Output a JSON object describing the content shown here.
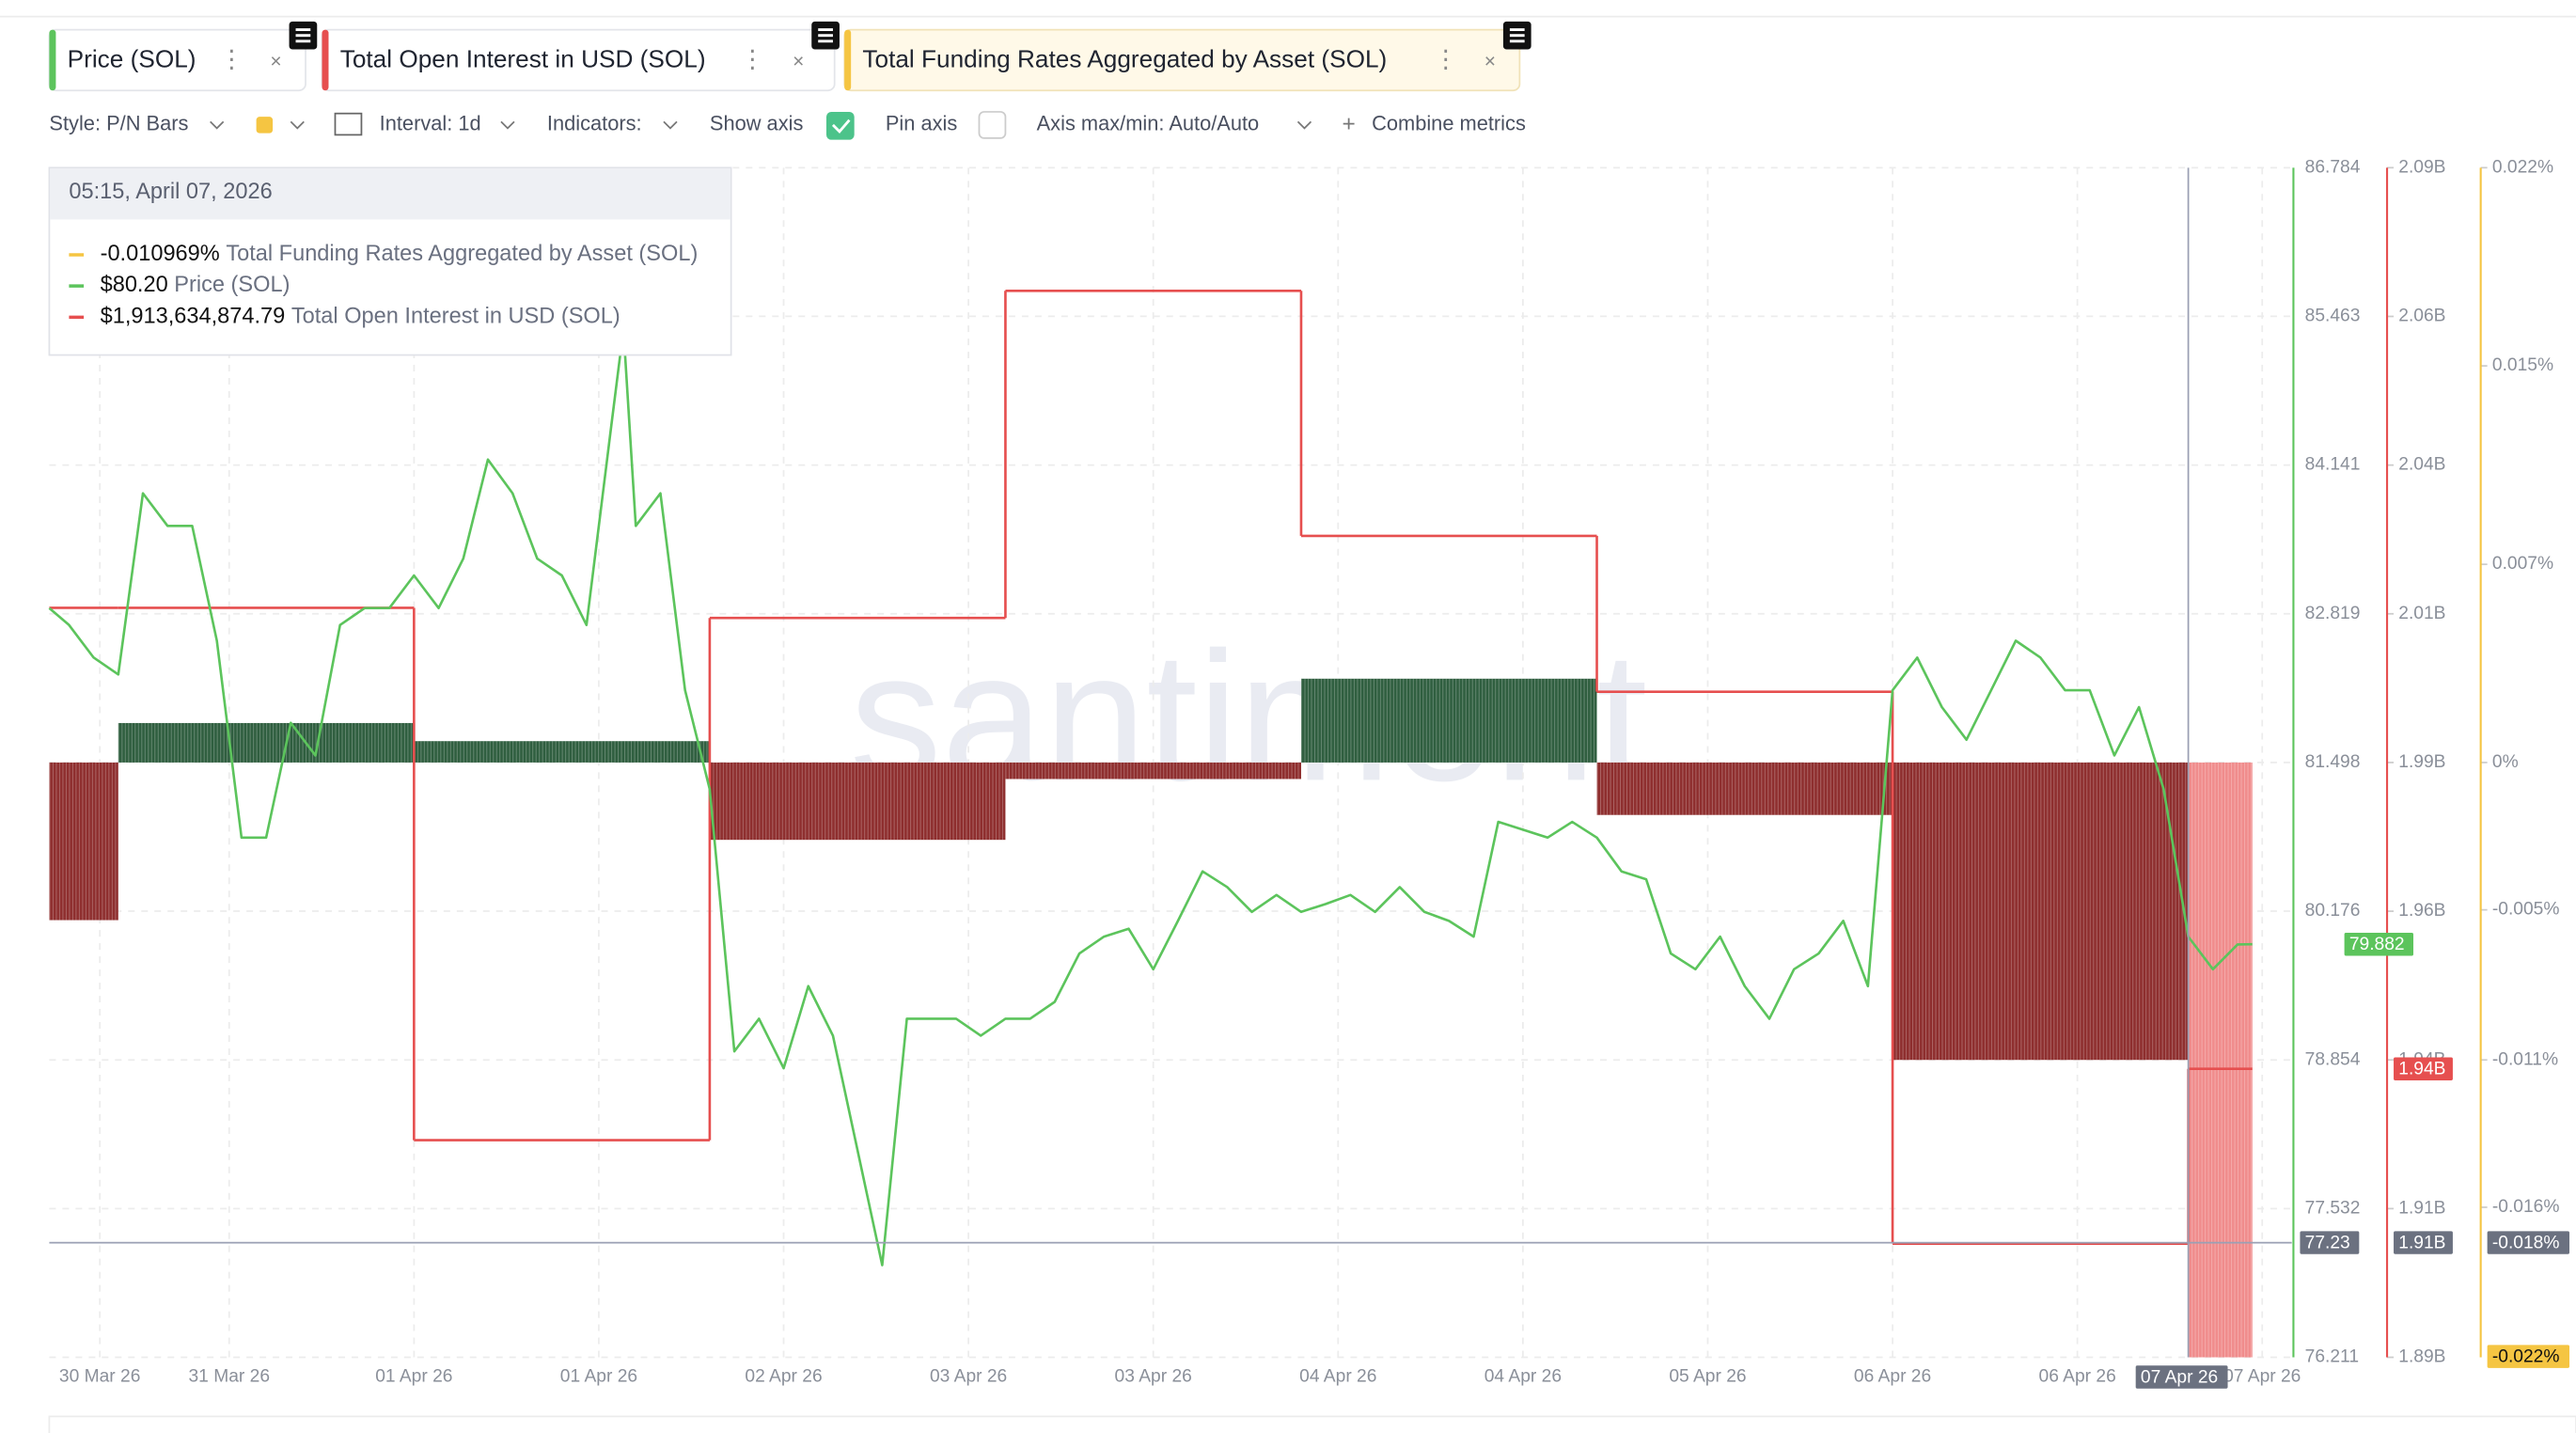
{
  "toolbar": {
    "style": "Style: P/N Bars",
    "interval": "Interval: 1d",
    "indicators": "Indicators:",
    "show_axis": "Show axis",
    "pin_axis": "Pin axis",
    "axis_minmax": "Axis max/min: Auto/Auto",
    "combine": "Combine metrics"
  },
  "tooltip": {
    "title": "05:15, April 07, 2026",
    "rows": [
      {
        "value": "-0.010969%",
        "name": "Total Funding Rates Aggregated by Asset (SOL)"
      },
      {
        "value": "$80.20",
        "name": "Price (SOL)"
      },
      {
        "value": "$1,913,634,874.79",
        "name": "Total Open Interest in USD (SOL)"
      }
    ]
  },
  "watermark": "santiment",
  "chart_data": {
    "type": "line",
    "xlim": [
      -5.6,
      176.4
    ],
    "xticks": [
      {
        "value": -1.5,
        "label": "30 Mar 26"
      },
      {
        "value": 9,
        "label": "31 Mar 26"
      },
      {
        "value": 24,
        "label": "01 Apr 26"
      },
      {
        "value": 39,
        "label": "01 Apr 26"
      },
      {
        "value": 54,
        "label": "02 Apr 26"
      },
      {
        "value": 69,
        "label": "03 Apr 26"
      },
      {
        "value": 84,
        "label": "03 Apr 26"
      },
      {
        "value": 99,
        "label": "04 Apr 26"
      },
      {
        "value": 114,
        "label": "04 Apr 26"
      },
      {
        "value": 129,
        "label": "05 Apr 26"
      },
      {
        "value": 144,
        "label": "06 Apr 26"
      },
      {
        "value": 159,
        "label": "06 Apr 26"
      },
      {
        "value": 174,
        "label": "07 Apr 26"
      }
    ],
    "ylim": [
      76.211,
      86.784
    ],
    "yticks": [
      86.784,
      85.463,
      84.141,
      82.819,
      81.498,
      80.176,
      78.854,
      77.532,
      76.211
    ],
    "y2lim": [
      1887500000,
      2087500000
    ],
    "y2ticks": [
      {
        "value": 2087500000,
        "label": "2.09B"
      },
      {
        "value": 2062500000,
        "label": "2.06B"
      },
      {
        "value": 2037500000,
        "label": "2.04B"
      },
      {
        "value": 2012500000,
        "label": "2.01B"
      },
      {
        "value": 1987500000,
        "label": "1.99B"
      },
      {
        "value": 1962500000,
        "label": "1.96B"
      },
      {
        "value": 1937500000,
        "label": "1.94B"
      },
      {
        "value": 1912500000,
        "label": "1.91B"
      },
      {
        "value": 1887500000,
        "label": "1.89B"
      }
    ],
    "y3lim": [
      -0.022,
      0.022
    ],
    "y3ticks": [
      {
        "value": 0.022,
        "label": "0.022%"
      },
      {
        "value": 0.01467,
        "label": "0.015%"
      },
      {
        "value": 0.00733,
        "label": "0.007%"
      },
      {
        "value": 0,
        "label": "0%"
      },
      {
        "value": -0.00545,
        "label": "-0.005%"
      },
      {
        "value": -0.011,
        "label": "-0.011%"
      },
      {
        "value": -0.01645,
        "label": "-0.016%"
      }
    ],
    "grid": true,
    "series": [
      {
        "name": "Price (SOL)",
        "type": "line",
        "color": "#5cc45c",
        "axis": "y",
        "x": [
          -5.6,
          -4,
          -2,
          0,
          2,
          4,
          6,
          8,
          10,
          12,
          14,
          16,
          18,
          20,
          22,
          24,
          26,
          28,
          30,
          32,
          34,
          36,
          38,
          40,
          41,
          42,
          44,
          46,
          48,
          50,
          52,
          54,
          56,
          58,
          60,
          62,
          64,
          66,
          68,
          70,
          72,
          74,
          76,
          78,
          80,
          82,
          84,
          86,
          88,
          90,
          92,
          94,
          96,
          98,
          100,
          102,
          104,
          106,
          108,
          110,
          112,
          114,
          116,
          118,
          120,
          122,
          124,
          126,
          128,
          130,
          132,
          134,
          136,
          138,
          140,
          142,
          144,
          146,
          148,
          150,
          152,
          154,
          156,
          158,
          160,
          162,
          164,
          166,
          168,
          170,
          172,
          173.2
        ],
        "values": [
          82.87,
          82.72,
          82.43,
          82.28,
          83.89,
          83.6,
          83.6,
          82.58,
          80.83,
          80.83,
          81.85,
          81.56,
          82.72,
          82.87,
          82.87,
          83.16,
          82.87,
          83.31,
          84.19,
          83.89,
          83.31,
          83.16,
          82.72,
          84.48,
          85.35,
          83.6,
          83.89,
          82.14,
          81.26,
          78.93,
          79.22,
          78.78,
          79.51,
          79.07,
          78.05,
          77.03,
          79.22,
          79.22,
          79.22,
          79.07,
          79.22,
          79.22,
          79.37,
          79.8,
          79.95,
          80.02,
          79.66,
          80.09,
          80.53,
          80.39,
          80.17,
          80.32,
          80.17,
          80.24,
          80.32,
          80.17,
          80.39,
          80.17,
          80.09,
          79.95,
          80.97,
          80.9,
          80.83,
          80.97,
          80.83,
          80.53,
          80.46,
          79.8,
          79.66,
          79.95,
          79.51,
          79.22,
          79.66,
          79.8,
          80.09,
          79.51,
          82.14,
          82.43,
          81.99,
          81.7,
          82.14,
          82.58,
          82.43,
          82.14,
          82.14,
          81.56,
          81.99,
          81.26,
          79.95,
          79.66,
          79.88,
          79.882
        ]
      },
      {
        "name": "Total Open Interest in USD (SOL)",
        "type": "step",
        "color": "#e64f4f",
        "axis": "y2",
        "edges": [
          -5.6,
          0,
          24,
          48,
          72,
          96,
          120,
          144,
          168,
          173.2
        ],
        "values": [
          2013500000,
          2013500000,
          1924000000,
          2011800000,
          2066800000,
          2025600000,
          1999400000,
          1906600000,
          1936000000
        ],
        "last_label": "1.94B"
      },
      {
        "name": "Total Funding Rates Aggregated by Asset (SOL)",
        "type": "bar",
        "color": "#f5c542",
        "axis": "y3",
        "edges": [
          -5.6,
          0,
          24,
          48,
          72,
          96,
          120,
          144,
          168,
          173.2
        ],
        "values": [
          -0.00583,
          0.00146,
          0.00079,
          -0.00286,
          -0.00061,
          0.0031,
          -0.00194,
          -0.011,
          -0.022
        ],
        "bar_colors": [
          "#8e2e2e",
          "#2f5e3f",
          "#2f5e3f",
          "#8e2e2e",
          "#8e2e2e",
          "#2f5e3f",
          "#8e2e2e",
          "#8e2e2e",
          "#f08c8c"
        ],
        "last_label": "-0.022%"
      }
    ],
    "crosshair": {
      "x": 168,
      "x_label": "07 Apr 26",
      "y": 77.23,
      "y2_label": "1.91B",
      "y3_label": "-0.018%"
    }
  }
}
